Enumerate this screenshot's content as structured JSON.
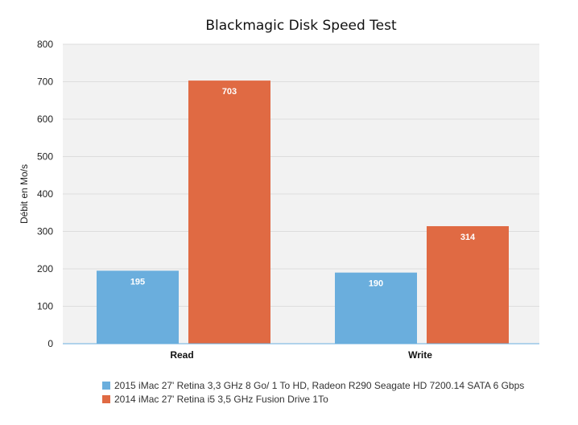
{
  "chart_data": {
    "type": "bar",
    "title": "Blackmagic Disk Speed Test",
    "ylabel": "Débit en Mo/s",
    "xlabel": "",
    "categories": [
      "Read",
      "Write"
    ],
    "ylim": [
      0,
      800
    ],
    "yticks": [
      0,
      100,
      200,
      300,
      400,
      500,
      600,
      700,
      800
    ],
    "grid": true,
    "legend_position": "bottom",
    "data_labels": true,
    "series": [
      {
        "name": "2015 iMac 27' Retina 3,3 GHz 8 Go/ 1 To HD, Radeon R290 Seagate HD 7200.14 SATA 6 Gbps",
        "values": [
          195,
          190
        ],
        "color": "#6aaedd"
      },
      {
        "name": "2014 iMac 27' Retina i5 3,5 GHz Fusion Drive 1To",
        "values": [
          703,
          314
        ],
        "color": "#e06a43"
      }
    ]
  },
  "colors": {
    "plot_background": "#f2f2f2",
    "grid": "#dddddd",
    "axis": "#6aaedd"
  }
}
